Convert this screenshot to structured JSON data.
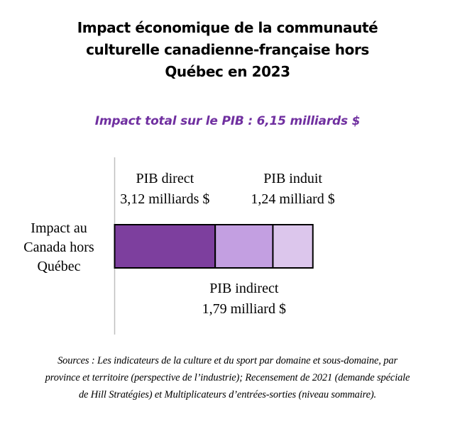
{
  "title": {
    "line1": "Impact économique de la communauté",
    "line2": "culturelle canadienne-française hors",
    "line3": "Québec en 2023"
  },
  "subtitle": "Impact total sur le PIB : 6,15 milliards $",
  "chart_data": {
    "type": "bar",
    "orientation": "horizontal",
    "stacked": true,
    "unit": "milliards $",
    "categories": [
      "Impact au Canada hors Québec"
    ],
    "category_label_lines": [
      "Impact au",
      "Canada hors",
      "Québec"
    ],
    "total": 6.15,
    "xlim": [
      0,
      10.45
    ],
    "grid": false,
    "legend": "none",
    "series": [
      {
        "name": "PIB direct",
        "values": [
          3.12
        ],
        "label_lines": [
          "PIB direct",
          "3,12 milliards $"
        ],
        "label_position": "above",
        "color": "#7d3f9e"
      },
      {
        "name": "PIB indirect",
        "values": [
          1.79
        ],
        "label_lines": [
          "PIB indirect",
          "1,79 milliard $"
        ],
        "label_position": "below",
        "color": "#c39fe1"
      },
      {
        "name": "PIB induit",
        "values": [
          1.24
        ],
        "label_lines": [
          "PIB induit",
          "1,24 milliard $"
        ],
        "label_position": "above",
        "color": "#dcc6ec"
      }
    ]
  },
  "sources": {
    "line1": "Sources : Les indicateurs de la culture et du sport par domaine et sous-domaine, par",
    "line2": "province et territoire (perspective de l’industrie); Recensement de 2021 (demande spéciale",
    "line3": "de Hill Stratégies) et Multiplicateurs d’entrées-sorties (niveau sommaire)."
  }
}
